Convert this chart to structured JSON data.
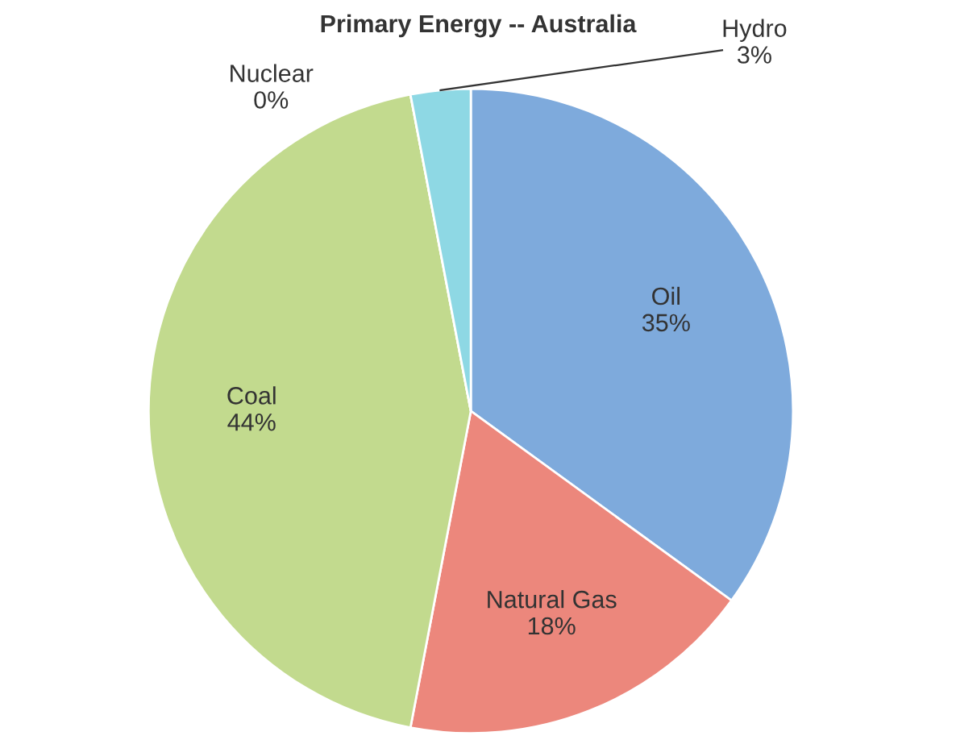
{
  "chart_data": {
    "type": "pie",
    "title": "Primary Energy -- Australia",
    "categories": [
      "Oil",
      "Natural Gas",
      "Coal",
      "Nuclear",
      "Hydro"
    ],
    "values": [
      35,
      18,
      44,
      0,
      3
    ],
    "value_labels": [
      "35%",
      "18%",
      "44%",
      "0%",
      "3%"
    ],
    "colors": [
      "#7eaadc",
      "#ec877c",
      "#c2da8e",
      "#b9a4d6",
      "#8ed8e4"
    ],
    "legend": false
  }
}
